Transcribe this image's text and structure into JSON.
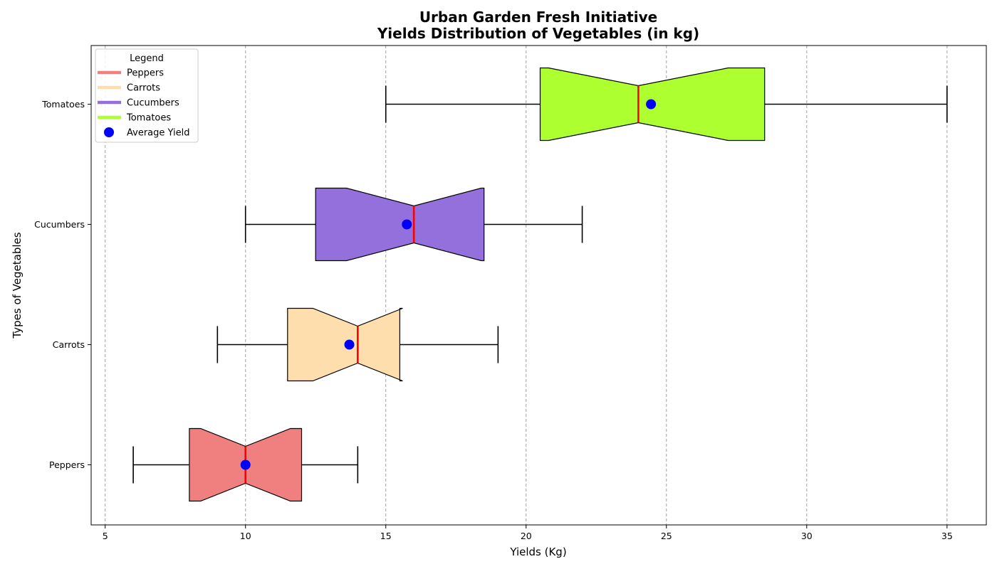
{
  "chart_data": {
    "type": "boxplot",
    "orientation": "horizontal",
    "notched": true,
    "title_line1": "Urban Garden Fresh Initiative",
    "title_line2": "Yields Distribution of Vegetables (in kg)",
    "xlabel": "Yields (Kg)",
    "ylabel": "Types of Vegetables",
    "xlim": [
      4.5,
      36.4
    ],
    "xticks": [
      5,
      10,
      15,
      20,
      25,
      30,
      35
    ],
    "grid": "x-dashed",
    "legend_title": "Legend",
    "legend_placement": "top-left",
    "average_label": "Average Yield",
    "average_color": "#0000ff",
    "median_color": "#ff0000",
    "series": [
      {
        "name": "Peppers",
        "color": "#f08080",
        "whisker_low": 6,
        "q1": 8,
        "notch_low": 8.4,
        "median": 10,
        "notch_high": 11.6,
        "q3": 12,
        "whisker_high": 14,
        "mean": 10.0
      },
      {
        "name": "Carrots",
        "color": "#ffdead",
        "whisker_low": 9,
        "q1": 11.5,
        "notch_low": 12.4,
        "median": 14,
        "notch_high": 15.6,
        "q3": 15.5,
        "whisker_high": 19,
        "mean": 13.7
      },
      {
        "name": "Cucumbers",
        "color": "#9370db",
        "whisker_low": 10,
        "q1": 12.5,
        "notch_low": 13.6,
        "median": 16,
        "notch_high": 18.4,
        "q3": 18.5,
        "whisker_high": 22,
        "mean": 15.75
      },
      {
        "name": "Tomatoes",
        "color": "#adff2f",
        "whisker_low": 15,
        "q1": 20.5,
        "notch_low": 20.8,
        "median": 24,
        "notch_high": 27.2,
        "q3": 28.5,
        "whisker_high": 35,
        "mean": 24.45
      }
    ]
  }
}
